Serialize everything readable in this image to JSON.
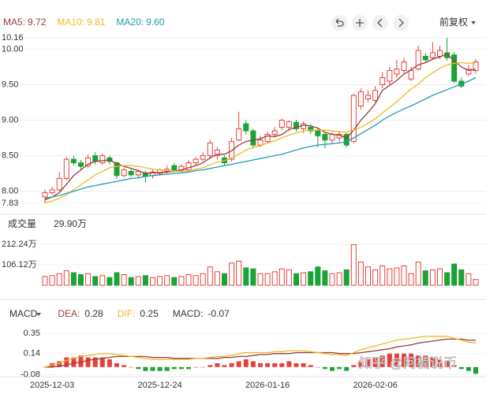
{
  "toolbar": {
    "adjust": "前复权"
  },
  "watermark": "知乎 @阿楠说币",
  "chart_data": [
    {
      "type": "candlestick",
      "up_color": "#e8413c",
      "down_color": "#1aa336",
      "ylim": [
        7.83,
        10.16
      ],
      "yticks": [
        10.16,
        {
          "value": 10,
          "label": "10.00"
        },
        {
          "value": 9.5,
          "label": "9.50"
        },
        {
          "value": 9,
          "label": "9.00"
        },
        {
          "value": 8.5,
          "label": "8.50"
        },
        {
          "value": 8,
          "label": "8.00"
        },
        7.83
      ],
      "grid": true,
      "open": [
        7.92,
        7.98,
        8.02,
        8.18,
        8.45,
        8.4,
        8.36,
        8.5,
        8.4,
        8.47,
        8.4,
        8.22,
        8.28,
        8.23,
        8.26,
        8.22,
        8.25,
        8.28,
        8.36,
        8.3,
        8.3,
        8.4,
        8.45,
        8.5,
        8.5,
        8.47,
        8.45,
        8.72,
        8.95,
        8.85,
        8.65,
        8.7,
        8.8,
        8.9,
        8.9,
        8.97,
        8.88,
        8.9,
        8.85,
        8.8,
        8.72,
        8.75,
        8.8,
        8.7,
        9.2,
        9.3,
        9.28,
        9.5,
        9.55,
        9.65,
        9.7,
        9.58,
        9.72,
        9.9,
        9.88,
        9.9,
        9.95,
        9.92,
        9.55,
        9.65,
        9.7
      ],
      "high": [
        8.02,
        8.06,
        8.27,
        8.48,
        8.5,
        8.44,
        8.52,
        8.55,
        8.53,
        8.5,
        8.42,
        8.33,
        8.31,
        8.3,
        8.29,
        8.3,
        8.32,
        8.36,
        8.4,
        8.38,
        8.44,
        8.48,
        8.55,
        8.72,
        8.62,
        8.5,
        8.75,
        9.12,
        9.0,
        8.88,
        8.78,
        8.84,
        8.9,
        9.02,
        9.0,
        9.0,
        8.98,
        8.95,
        8.88,
        8.84,
        8.83,
        8.85,
        8.82,
        9.37,
        9.45,
        9.42,
        9.48,
        9.68,
        9.75,
        9.85,
        9.88,
        9.75,
        10.05,
        9.95,
        10.1,
        10.05,
        10.16,
        9.96,
        9.6,
        9.78,
        9.86
      ],
      "low": [
        7.83,
        7.95,
        8.0,
        8.15,
        8.36,
        8.3,
        8.33,
        8.38,
        8.37,
        8.38,
        8.18,
        8.2,
        8.2,
        8.19,
        8.12,
        8.18,
        8.22,
        8.25,
        8.27,
        8.28,
        8.28,
        8.36,
        8.42,
        8.47,
        8.45,
        8.36,
        8.42,
        8.7,
        8.8,
        8.6,
        8.62,
        8.67,
        8.76,
        8.86,
        8.85,
        8.84,
        8.82,
        8.8,
        8.62,
        8.6,
        8.68,
        8.7,
        8.62,
        8.68,
        9.15,
        9.25,
        9.25,
        9.45,
        9.5,
        9.6,
        9.66,
        9.55,
        9.7,
        9.82,
        9.85,
        9.86,
        9.84,
        9.52,
        9.45,
        9.62,
        9.66
      ],
      "close": [
        7.98,
        8.02,
        8.18,
        8.45,
        8.4,
        8.35,
        8.47,
        8.42,
        8.5,
        8.42,
        8.22,
        8.3,
        8.23,
        8.28,
        8.21,
        8.27,
        8.3,
        8.31,
        8.3,
        8.35,
        8.4,
        8.45,
        8.5,
        8.68,
        8.58,
        8.4,
        8.7,
        8.88,
        8.85,
        8.65,
        8.72,
        8.8,
        8.85,
        9.0,
        8.98,
        8.88,
        8.95,
        8.85,
        8.78,
        8.72,
        8.8,
        8.8,
        8.65,
        9.35,
        9.4,
        9.35,
        9.42,
        9.6,
        9.7,
        9.72,
        9.82,
        9.7,
        9.98,
        9.85,
        9.95,
        9.98,
        9.88,
        9.55,
        9.48,
        9.72,
        9.82
      ],
      "series": [
        {
          "name": "MA5:",
          "legend_value": {
            "value": 9.72,
            "label": "9.72"
          },
          "color": "#9a3b3b",
          "values": [
            7.88,
            7.92,
            7.98,
            8.1,
            8.22,
            8.3,
            8.38,
            8.42,
            8.43,
            8.44,
            8.39,
            8.35,
            8.32,
            8.29,
            8.25,
            8.26,
            8.26,
            8.27,
            8.28,
            8.3,
            8.33,
            8.36,
            8.4,
            8.47,
            8.52,
            8.52,
            8.57,
            8.65,
            8.7,
            8.72,
            8.74,
            8.78,
            8.77,
            8.8,
            8.87,
            8.9,
            8.93,
            8.92,
            8.89,
            8.83,
            8.8,
            8.79,
            8.75,
            8.86,
            9.0,
            9.11,
            9.23,
            9.42,
            9.49,
            9.56,
            9.65,
            9.71,
            9.78,
            9.81,
            9.86,
            9.89,
            9.93,
            9.84,
            9.75,
            9.7,
            9.72
          ]
        },
        {
          "name": "MA10:",
          "legend_value": {
            "value": 9.81,
            "label": "9.81"
          },
          "color": "#f0b824",
          "values": [
            7.84,
            7.86,
            7.9,
            7.95,
            8.02,
            8.09,
            8.16,
            8.23,
            8.28,
            8.33,
            8.35,
            8.36,
            8.36,
            8.35,
            8.33,
            8.31,
            8.3,
            8.29,
            8.28,
            8.28,
            8.29,
            8.31,
            8.33,
            8.37,
            8.41,
            8.43,
            8.47,
            8.52,
            8.58,
            8.62,
            8.64,
            8.68,
            8.71,
            8.75,
            8.79,
            8.82,
            8.85,
            8.86,
            8.86,
            8.86,
            8.85,
            8.84,
            8.83,
            8.86,
            8.9,
            8.96,
            9.02,
            9.1,
            9.18,
            9.26,
            9.35,
            9.44,
            9.51,
            9.6,
            9.67,
            9.73,
            9.78,
            9.8,
            9.81,
            9.8,
            9.81
          ]
        },
        {
          "name": "MA20:",
          "legend_value": {
            "value": 9.6,
            "label": "9.60"
          },
          "color": "#1f9bb5",
          "values": [
            7.9,
            7.92,
            7.94,
            7.97,
            8.0,
            8.03,
            8.06,
            8.08,
            8.1,
            8.12,
            8.14,
            8.16,
            8.18,
            8.19,
            8.21,
            8.22,
            8.23,
            8.24,
            8.25,
            8.26,
            8.27,
            8.29,
            8.3,
            8.32,
            8.34,
            8.36,
            8.38,
            8.4,
            8.42,
            8.44,
            8.46,
            8.48,
            8.5,
            8.52,
            8.55,
            8.58,
            8.61,
            8.63,
            8.65,
            8.66,
            8.67,
            8.68,
            8.7,
            8.75,
            8.81,
            8.87,
            8.93,
            9.0,
            9.06,
            9.11,
            9.16,
            9.2,
            9.25,
            9.3,
            9.35,
            9.39,
            9.43,
            9.47,
            9.51,
            9.55,
            9.6
          ]
        }
      ]
    },
    {
      "type": "bar",
      "title": "成交量",
      "current": {
        "value": 29.9,
        "label": "29.90万"
      },
      "ylim": [
        0,
        212.24
      ],
      "yticks": [
        {
          "value": 212.24,
          "label": "212.24万"
        },
        {
          "value": 106.12,
          "label": "106.12万"
        }
      ],
      "values": [
        45,
        50,
        60,
        75,
        65,
        55,
        60,
        45,
        50,
        40,
        65,
        55,
        40,
        45,
        50,
        40,
        45,
        50,
        40,
        45,
        55,
        50,
        60,
        95,
        70,
        60,
        115,
        125,
        90,
        85,
        60,
        60,
        70,
        85,
        80,
        60,
        65,
        70,
        95,
        75,
        60,
        65,
        80,
        210,
        120,
        95,
        80,
        100,
        85,
        90,
        100,
        60,
        120,
        75,
        80,
        85,
        65,
        110,
        80,
        60,
        29.9
      ]
    },
    {
      "type": "macd",
      "title": "MACD",
      "ylim": [
        -0.1,
        0.4
      ],
      "yticks": [
        0.35,
        0.14,
        -0.08
      ],
      "categories": [
        null,
        "2025-12-03",
        null,
        null,
        null,
        null,
        null,
        null,
        null,
        null,
        null,
        null,
        null,
        null,
        null,
        null,
        "2025-12-24",
        null,
        null,
        null,
        null,
        null,
        null,
        null,
        null,
        null,
        null,
        null,
        null,
        null,
        null,
        "2026-01-16",
        null,
        null,
        null,
        null,
        null,
        null,
        null,
        null,
        null,
        null,
        null,
        null,
        null,
        null,
        "2026-02-06",
        null,
        null,
        null,
        null,
        null,
        null,
        null,
        null,
        null,
        null,
        null,
        null,
        null,
        null
      ],
      "series": [
        {
          "name": "DEA:",
          "last": 0.28,
          "color": "#9a3b3b",
          "values": [
            0.0,
            0.0,
            0.01,
            0.02,
            0.04,
            0.05,
            0.07,
            0.08,
            0.09,
            0.1,
            0.11,
            0.11,
            0.11,
            0.11,
            0.11,
            0.1,
            0.1,
            0.1,
            0.09,
            0.09,
            0.09,
            0.09,
            0.09,
            0.09,
            0.09,
            0.1,
            0.1,
            0.11,
            0.11,
            0.12,
            0.13,
            0.13,
            0.14,
            0.14,
            0.14,
            0.15,
            0.15,
            0.15,
            0.15,
            0.15,
            0.15,
            0.14,
            0.14,
            0.14,
            0.15,
            0.16,
            0.17,
            0.18,
            0.19,
            0.21,
            0.22,
            0.23,
            0.25,
            0.26,
            0.27,
            0.28,
            0.29,
            0.29,
            0.29,
            0.28,
            0.28
          ]
        },
        {
          "name": "DIF:",
          "last": 0.25,
          "color": "#f0b824",
          "values": [
            0.0,
            0.02,
            0.04,
            0.07,
            0.09,
            0.11,
            0.12,
            0.13,
            0.14,
            0.14,
            0.13,
            0.12,
            0.11,
            0.1,
            0.09,
            0.08,
            0.08,
            0.08,
            0.08,
            0.08,
            0.08,
            0.09,
            0.09,
            0.1,
            0.11,
            0.11,
            0.12,
            0.14,
            0.15,
            0.15,
            0.15,
            0.15,
            0.16,
            0.16,
            0.17,
            0.17,
            0.17,
            0.16,
            0.15,
            0.14,
            0.13,
            0.13,
            0.12,
            0.15,
            0.18,
            0.2,
            0.22,
            0.24,
            0.26,
            0.28,
            0.29,
            0.3,
            0.31,
            0.32,
            0.32,
            0.32,
            0.32,
            0.3,
            0.28,
            0.26,
            0.25
          ]
        }
      ],
      "histogram": {
        "name": "MACD:",
        "last": -0.07,
        "values": [
          0.0,
          0.04,
          0.06,
          0.1,
          0.1,
          0.12,
          0.1,
          0.1,
          0.1,
          0.08,
          0.04,
          0.02,
          0.0,
          -0.02,
          -0.04,
          -0.04,
          -0.04,
          -0.04,
          -0.02,
          -0.02,
          -0.02,
          0.0,
          0.0,
          0.02,
          0.04,
          0.02,
          0.04,
          0.06,
          0.08,
          0.06,
          0.04,
          0.04,
          0.04,
          0.04,
          0.06,
          0.04,
          0.04,
          0.02,
          0.0,
          -0.02,
          -0.04,
          -0.02,
          -0.04,
          0.02,
          0.06,
          0.08,
          0.1,
          0.12,
          0.14,
          0.14,
          0.14,
          0.14,
          0.12,
          0.12,
          0.1,
          0.08,
          0.06,
          0.02,
          -0.02,
          -0.04,
          -0.07
        ]
      }
    }
  ]
}
